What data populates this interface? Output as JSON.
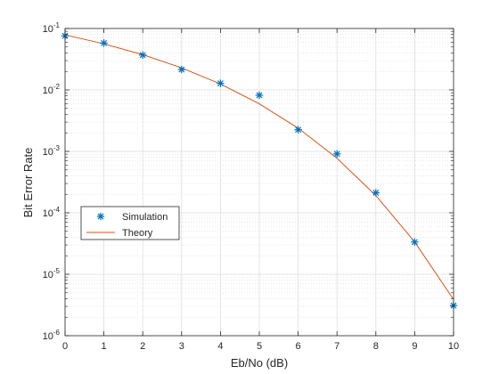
{
  "chart_data": {
    "type": "line",
    "xlabel": "Eb/No (dB)",
    "ylabel": "Bit Error Rate",
    "xlim": [
      0,
      10
    ],
    "ylim": [
      1e-06,
      0.1
    ],
    "yscale": "log",
    "grid": true,
    "minor_grid": true,
    "legend_position": "middle-left",
    "x_ticks": [
      0,
      1,
      2,
      3,
      4,
      5,
      6,
      7,
      8,
      9,
      10
    ],
    "x_tick_labels": [
      "0",
      "1",
      "2",
      "3",
      "4",
      "5",
      "6",
      "7",
      "8",
      "9",
      "10"
    ],
    "y_ticks": [
      1e-06,
      1e-05,
      0.0001,
      0.001,
      0.01,
      0.1
    ],
    "y_tick_labels": [
      {
        "base": "10",
        "exp": "-6"
      },
      {
        "base": "10",
        "exp": "-5"
      },
      {
        "base": "10",
        "exp": "-4"
      },
      {
        "base": "10",
        "exp": "-3"
      },
      {
        "base": "10",
        "exp": "-2"
      },
      {
        "base": "10",
        "exp": "-1"
      }
    ],
    "series": [
      {
        "name": "Simulation",
        "marker": "asterisk",
        "color": "#0072BD",
        "x": [
          0,
          1,
          2,
          3,
          4,
          5,
          6,
          7,
          8,
          9,
          10
        ],
        "y": [
          0.076,
          0.058,
          0.037,
          0.0215,
          0.0128,
          0.0082,
          0.00225,
          0.00091,
          0.000212,
          3.35e-05,
          3.1e-06
        ]
      },
      {
        "name": "Theory",
        "marker": "none",
        "color": "#D95319",
        "x": [
          0,
          1,
          2,
          3,
          4,
          5,
          6,
          7,
          8,
          9,
          10
        ],
        "y": [
          0.0786,
          0.0563,
          0.0375,
          0.0229,
          0.0125,
          0.00595,
          0.00239,
          0.000773,
          0.000191,
          3.36e-05,
          3.87e-06
        ]
      }
    ]
  }
}
